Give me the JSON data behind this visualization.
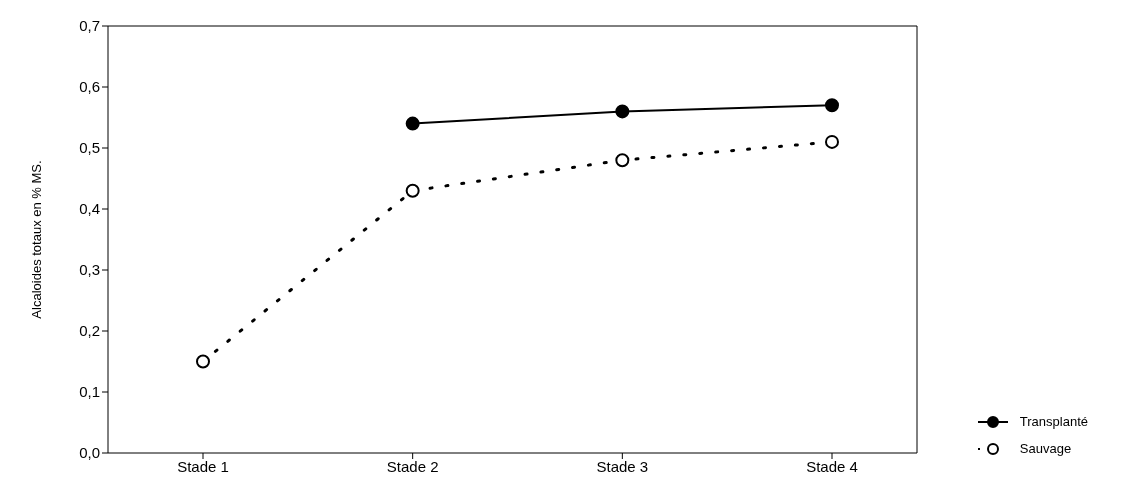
{
  "chart_data": {
    "type": "line",
    "ylabel": "Alcaloides totaux en % MS.",
    "categories": [
      "Stade 1",
      "Stade 2",
      "Stade 3",
      "Stade 4"
    ],
    "series": [
      {
        "name": "Transplanté",
        "color": "#000000",
        "values": [
          null,
          0.54,
          0.56,
          0.57
        ],
        "line_style": "solid"
      },
      {
        "name": "Sauvage",
        "color": "#000000",
        "values": [
          0.15,
          0.43,
          0.48,
          0.51
        ],
        "line_style": "dotted"
      }
    ],
    "ylim": [
      0,
      0.7
    ],
    "yticks": [
      {
        "value": 0,
        "label": "0,0"
      },
      {
        "value": 0.1,
        "label": "0,1"
      },
      {
        "value": 0.2,
        "label": "0,2"
      },
      {
        "value": 0.3,
        "label": "0,3"
      },
      {
        "value": 0.4,
        "label": "0,4"
      },
      {
        "value": 0.5,
        "label": "0,5"
      },
      {
        "value": 0.6,
        "label": "0,6"
      },
      {
        "value": 0.7,
        "label": "0,7"
      }
    ],
    "marker": "circle",
    "grid": false,
    "legend": "bottom right"
  }
}
